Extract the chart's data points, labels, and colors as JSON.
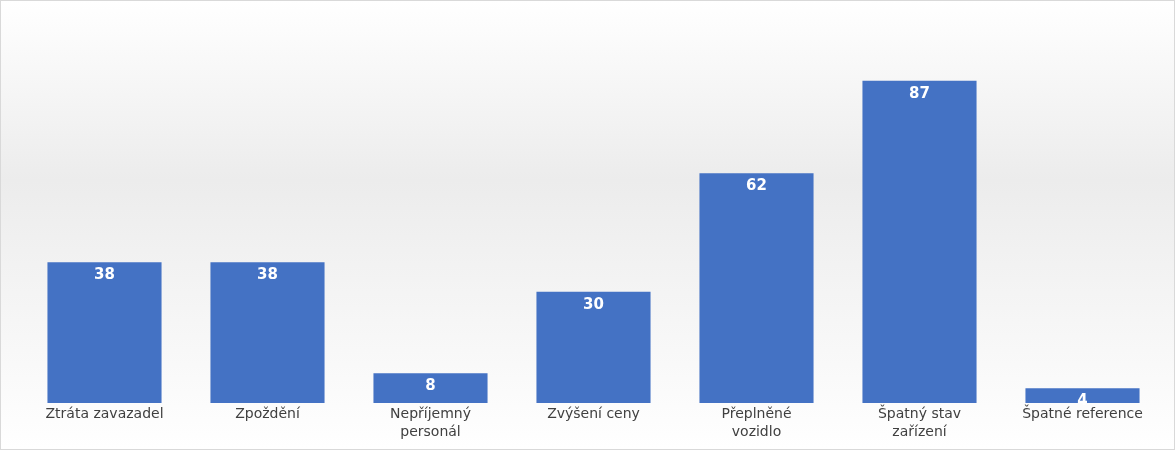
{
  "chart_data": {
    "type": "bar",
    "categories": [
      "Ztráta zavazadel",
      "Zpoždění",
      "Nepříjemný personál",
      "Zvýšení ceny",
      "Přeplněné vozidlo",
      "Špatný stav zařízení",
      "Špatné reference"
    ],
    "values": [
      38,
      38,
      8,
      30,
      62,
      87,
      4
    ],
    "color": "#4472c4",
    "data_labels": true
  }
}
